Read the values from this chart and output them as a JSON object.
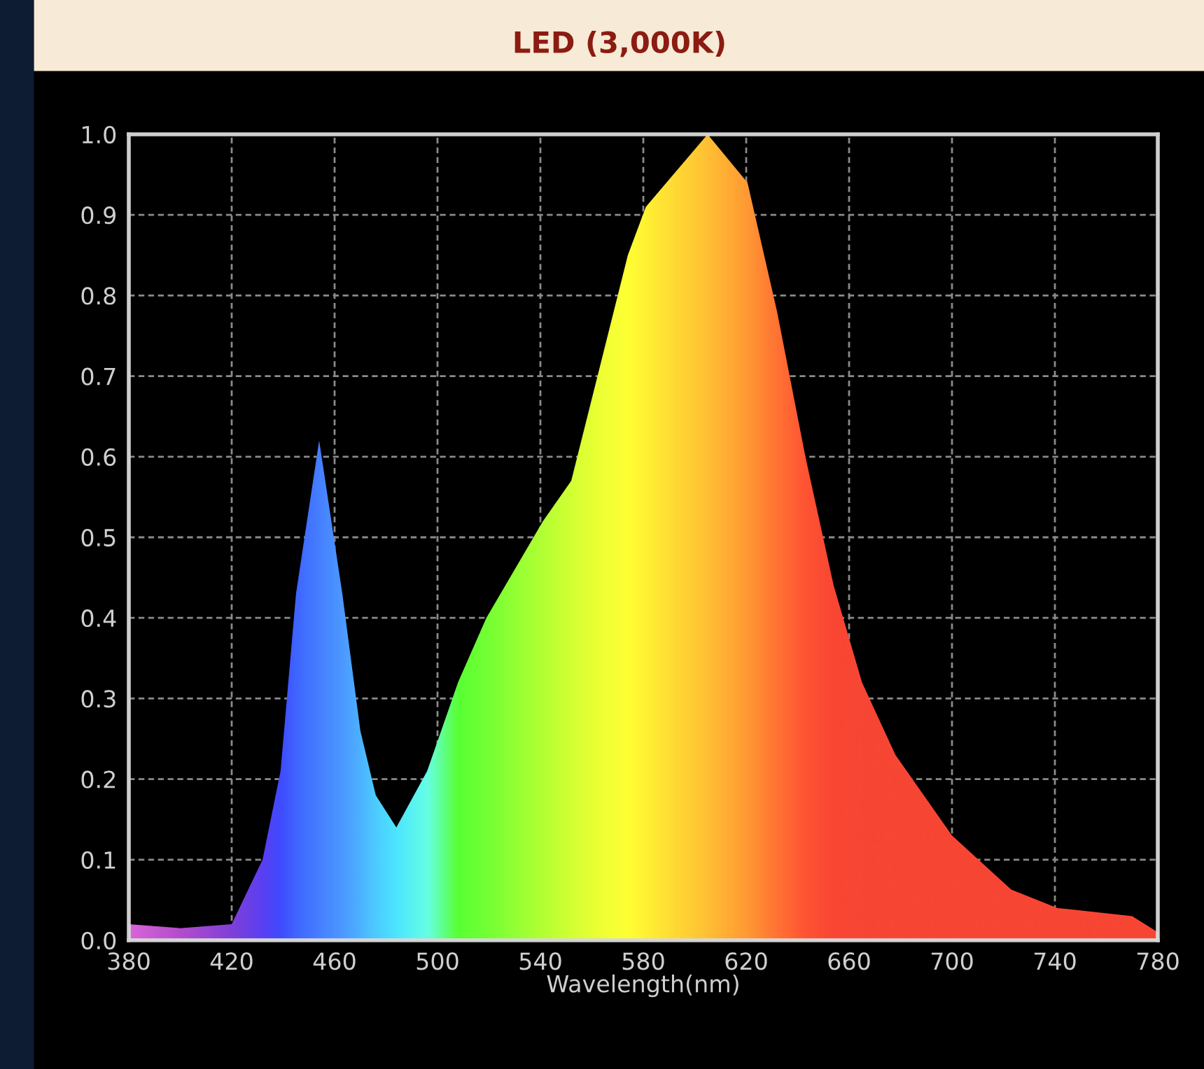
{
  "chart_data": {
    "type": "area",
    "title": "LED (3,000K)",
    "xlabel": "Wavelength(nm)",
    "xlim": [
      380,
      780
    ],
    "xticks": [
      380,
      420,
      460,
      500,
      540,
      580,
      620,
      660,
      700,
      740,
      780
    ],
    "ylim": [
      0.0,
      1.0
    ],
    "yticks": [
      {
        "value": 0,
        "label": "0.0"
      },
      0.1,
      0.2,
      0.3,
      0.4,
      0.5,
      0.6,
      0.7,
      0.8,
      0.9,
      {
        "value": 1,
        "label": "1.0"
      }
    ],
    "grid": true,
    "legend": false,
    "series": [
      {
        "x": [
          380,
          400,
          420,
          432,
          439,
          445,
          454,
          463,
          470,
          476,
          484,
          496,
          508,
          519,
          541,
          552,
          563,
          574,
          581,
          605,
          620.5,
          632,
          643,
          654,
          665,
          678,
          700,
          723,
          741,
          770,
          780
        ],
        "values": [
          0.02,
          0.015,
          0.02,
          0.1,
          0.21,
          0.43,
          0.62,
          0.43,
          0.26,
          0.18,
          0.14,
          0.21,
          0.32,
          0.4,
          0.52,
          0.57,
          0.71,
          0.85,
          0.91,
          1.0,
          0.94,
          0.78,
          0.6,
          0.44,
          0.32,
          0.23,
          0.13,
          0.063,
          0.04,
          0.03,
          0.01
        ],
        "color": "#ffffff",
        "colors": [
          "#d040d0",
          "#a020c0",
          "#6010d0",
          "#3010f0",
          "#1020ff",
          "#1040ff",
          "#1860ff",
          "#2080ff",
          "#20a0ff",
          "#20c0ff",
          "#20e0ff",
          "#40ffe0",
          "#30ff00",
          "#50ff00",
          "#a0ff00",
          "#c8ff00",
          "#e8ff00",
          "#ffff00",
          "#ffee00",
          "#ffb000",
          "#ff8000",
          "#ff5000",
          "#ff2a00",
          "#f81800",
          "#f51800",
          "#f51800",
          "#f51800",
          "#f51800",
          "#f51800",
          "#f51800",
          "#f51800"
        ]
      }
    ]
  }
}
